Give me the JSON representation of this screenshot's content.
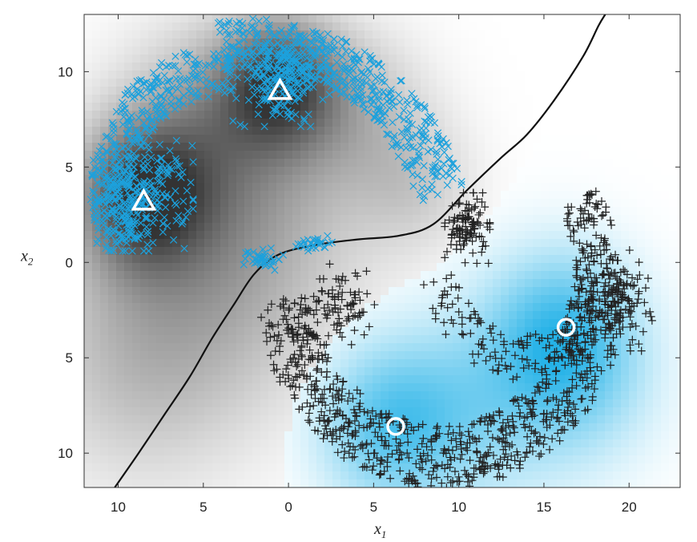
{
  "chart_data": {
    "type": "scatter",
    "title": "",
    "xlabel": {
      "symbol": "x",
      "subscript": "1"
    },
    "ylabel": {
      "symbol": "x",
      "subscript": "2"
    },
    "xlim": [
      -12,
      23
    ],
    "ylim": [
      -11.8,
      13
    ],
    "x_ticks": [
      -10,
      -5,
      0,
      5,
      10,
      15,
      20
    ],
    "x_tick_labels": [
      "10",
      "5",
      "0",
      "5",
      "10",
      "15",
      "20"
    ],
    "y_ticks": [
      -10,
      -5,
      0,
      5,
      10
    ],
    "y_tick_labels": [
      "10",
      "5",
      "0",
      "5",
      "10"
    ],
    "grid": false,
    "legend": "none",
    "colors": {
      "cross_class": "#1da1dc",
      "plus_class": "#222222",
      "density_cross": "#000000",
      "density_plus": "#19aee6",
      "boundary": "#111111",
      "prototype_marker": "#ffffff",
      "frame": "#333333"
    },
    "series": [
      {
        "marker": "cross",
        "color": "#1da1dc",
        "arcs": [
          {
            "cx": -4,
            "cy": 3.5,
            "r": 6.5,
            "a_start": 150,
            "a_end": 205,
            "width": 1.2,
            "count": 170
          },
          {
            "cx": -4,
            "cy": 3.5,
            "r": 6.5,
            "a_start": 85,
            "a_end": 150,
            "width": 1.3,
            "count": 190
          },
          {
            "cx": -2,
            "cy": 0,
            "r": 11.5,
            "a_start": 45,
            "a_end": 100,
            "width": 1.3,
            "count": 320
          },
          {
            "cx": -2,
            "cy": 0,
            "r": 11.5,
            "a_start": 18,
            "a_end": 48,
            "width": 1.4,
            "count": 140
          }
        ],
        "clusters": [
          {
            "x": -8.5,
            "y": 3.5,
            "sx": 2.2,
            "sy": 2.2,
            "count": 230
          },
          {
            "x": -0.5,
            "y": 9.5,
            "sx": 2.2,
            "sy": 1.8,
            "count": 210
          },
          {
            "x": -1.5,
            "y": 0.2,
            "sx": 0.9,
            "sy": 0.5,
            "count": 40
          },
          {
            "x": 1.5,
            "y": 1.0,
            "sx": 0.8,
            "sy": 0.3,
            "count": 30
          }
        ]
      },
      {
        "marker": "plus",
        "color": "#222222",
        "arcs": [
          {
            "cx": 9,
            "cy": -1,
            "r": 9.2,
            "a_start": 185,
            "a_end": 360,
            "width": 1.7,
            "count": 800
          },
          {
            "cx": 9,
            "cy": -1,
            "r": 9.2,
            "a_start": 0,
            "a_end": 28,
            "width": 1.3,
            "count": 110
          },
          {
            "cx": 14,
            "cy": 0.2,
            "r": 5.2,
            "a_start": 190,
            "a_end": 355,
            "width": 1.2,
            "count": 180
          }
        ],
        "clusters": [
          {
            "x": 10.5,
            "y": 1.8,
            "sx": 1.0,
            "sy": 1.4,
            "count": 110
          },
          {
            "x": 3.2,
            "y": -2.2,
            "sx": 1.4,
            "sy": 1.6,
            "count": 80
          },
          {
            "x": 19.5,
            "y": -2.0,
            "sx": 1.4,
            "sy": 2.0,
            "count": 90
          }
        ]
      }
    ],
    "prototypes": [
      {
        "marker": "triangle",
        "x": -8.5,
        "y": 3.2
      },
      {
        "marker": "triangle",
        "x": -0.5,
        "y": 9.0
      },
      {
        "marker": "circle",
        "x": 16.3,
        "y": -3.4
      },
      {
        "marker": "circle",
        "x": 6.3,
        "y": -8.6
      }
    ],
    "density": [
      {
        "class": "cross",
        "peaks": [
          {
            "x": -8.5,
            "y": 3.5,
            "s": 2.6,
            "w": 0.75
          },
          {
            "x": -0.5,
            "y": 9.5,
            "s": 2.4,
            "w": 0.72
          },
          {
            "x": -4.5,
            "y": 7.5,
            "s": 3.5,
            "w": 0.3
          },
          {
            "x": 4.0,
            "y": 8.0,
            "s": 3.0,
            "w": 0.25
          },
          {
            "x": 7.5,
            "y": 4.0,
            "s": 2.5,
            "w": 0.2
          },
          {
            "x": -6.0,
            "y": -1.0,
            "s": 5.5,
            "w": 0.3
          },
          {
            "x": -2.0,
            "y": 3.0,
            "s": 5.0,
            "w": 0.25
          },
          {
            "x": -9.0,
            "y": -6.0,
            "s": 4.5,
            "w": 0.18
          }
        ]
      },
      {
        "class": "plus",
        "peaks": [
          {
            "x": 6.0,
            "y": -8.5,
            "s": 3.0,
            "w": 0.7
          },
          {
            "x": 16.0,
            "y": -3.5,
            "s": 3.0,
            "w": 0.7
          },
          {
            "x": 11.5,
            "y": -7.5,
            "s": 3.8,
            "w": 0.4
          },
          {
            "x": 17.5,
            "y": -6.5,
            "s": 3.2,
            "w": 0.3
          }
        ]
      }
    ],
    "boundary": [
      [
        -10.2,
        -11.8
      ],
      [
        -8.8,
        -10
      ],
      [
        -7.3,
        -8
      ],
      [
        -5.8,
        -6
      ],
      [
        -4.5,
        -4
      ],
      [
        -3.2,
        -2.2
      ],
      [
        -2.0,
        -0.6
      ],
      [
        -0.6,
        0.4
      ],
      [
        1.5,
        0.9
      ],
      [
        4.0,
        1.2
      ],
      [
        6.5,
        1.4
      ],
      [
        8.5,
        2.0
      ],
      [
        10.5,
        3.8
      ],
      [
        12.5,
        5.5
      ],
      [
        14.0,
        6.7
      ],
      [
        15.6,
        8.5
      ],
      [
        17.3,
        10.8
      ],
      [
        18.2,
        12.4
      ],
      [
        18.6,
        13.0
      ]
    ]
  }
}
